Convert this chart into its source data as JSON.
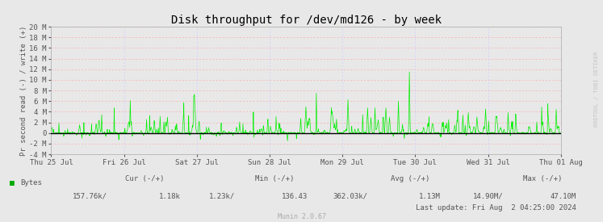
{
  "title": "Disk throughput for /dev/md126 - by week",
  "ylabel": "Pr second read (-) / write (+)",
  "ylim": [
    -4000000,
    20000000
  ],
  "yticks": [
    -4000000,
    -2000000,
    0,
    2000000,
    4000000,
    6000000,
    8000000,
    10000000,
    12000000,
    14000000,
    16000000,
    18000000,
    20000000
  ],
  "ytick_labels": [
    "-4 M",
    "-2 M",
    "0",
    "2 M",
    "4 M",
    "6 M",
    "8 M",
    "10 M",
    "12 M",
    "14 M",
    "16 M",
    "18 M",
    "20 M"
  ],
  "background_color": "#e8e8e8",
  "plot_bg_color": "#e8e8e8",
  "grid_color_h": "#ffaaaa",
  "grid_color_v": "#ccccff",
  "line_color": "#00ee00",
  "zero_line_color": "#000000",
  "title_color": "#000000",
  "label_color": "#555555",
  "tick_color": "#555555",
  "legend_label": "Bytes",
  "legend_color": "#00aa00",
  "watermark_text": "RRDTOOL / TOBI OETIKER",
  "watermark_color": "#bbbbbb",
  "footer_munin": "Munin 2.0.67",
  "footer_line1": "Last update: Fri Aug  2 04:25:00 2024",
  "cur_label": "Cur (-/+)",
  "min_label": "Min (-/+)",
  "avg_label": "Avg (-/+)",
  "max_label": "Max (-/+)",
  "cur_read": "157.76k/",
  "cur_write": "1.18k",
  "min_read": "1.23k/",
  "min_write": "136.43",
  "avg_read": "362.03k/",
  "avg_write": "1.13M",
  "max_read": "14.90M/",
  "max_write": "47.10M",
  "xtick_labels": [
    "Thu 25 Jul",
    "Fri 26 Jul",
    "Sat 27 Jul",
    "Sun 28 Jul",
    "Mon 29 Jul",
    "Tue 30 Jul",
    "Wed 31 Jul",
    "Thu 01 Aug"
  ],
  "num_points": 2000
}
